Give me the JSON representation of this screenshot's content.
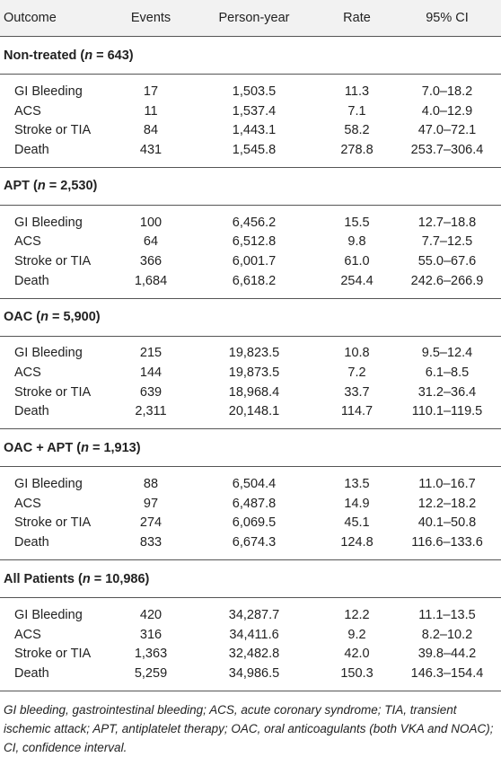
{
  "table": {
    "headers": [
      "Outcome",
      "Events",
      "Person-year",
      "Rate",
      "95% CI"
    ],
    "groups": [
      {
        "name": "Non-treated",
        "n_label": "n",
        "n_value": " = 643)",
        "rows": [
          [
            "GI Bleeding",
            "17",
            "1,503.5",
            "11.3",
            "7.0–18.2"
          ],
          [
            "ACS",
            "11",
            "1,537.4",
            "7.1",
            "4.0–12.9"
          ],
          [
            "Stroke or TIA",
            "84",
            "1,443.1",
            "58.2",
            "47.0–72.1"
          ],
          [
            "Death",
            "431",
            "1,545.8",
            "278.8",
            "253.7–306.4"
          ]
        ]
      },
      {
        "name": "APT",
        "n_label": "n",
        "n_value": " = 2,530)",
        "rows": [
          [
            "GI Bleeding",
            "100",
            "6,456.2",
            "15.5",
            "12.7–18.8"
          ],
          [
            "ACS",
            "64",
            "6,512.8",
            "9.8",
            "7.7–12.5"
          ],
          [
            "Stroke or TIA",
            "366",
            "6,001.7",
            "61.0",
            "55.0–67.6"
          ],
          [
            "Death",
            "1,684",
            "6,618.2",
            "254.4",
            "242.6–266.9"
          ]
        ]
      },
      {
        "name": "OAC",
        "n_label": "n",
        "n_value": " = 5,900)",
        "rows": [
          [
            "GI Bleeding",
            "215",
            "19,823.5",
            "10.8",
            "9.5–12.4"
          ],
          [
            "ACS",
            "144",
            "19,873.5",
            "7.2",
            "6.1–8.5"
          ],
          [
            "Stroke or TIA",
            "639",
            "18,968.4",
            "33.7",
            "31.2–36.4"
          ],
          [
            "Death",
            "2,311",
            "20,148.1",
            "114.7",
            "110.1–119.5"
          ]
        ]
      },
      {
        "name": "OAC + APT",
        "n_label": "n",
        "n_value": " = 1,913)",
        "rows": [
          [
            "GI Bleeding",
            "88",
            "6,504.4",
            "13.5",
            "11.0–16.7"
          ],
          [
            "ACS",
            "97",
            "6,487.8",
            "14.9",
            "12.2–18.2"
          ],
          [
            "Stroke or TIA",
            "274",
            "6,069.5",
            "45.1",
            "40.1–50.8"
          ],
          [
            "Death",
            "833",
            "6,674.3",
            "124.8",
            "116.6–133.6"
          ]
        ]
      },
      {
        "name": "All Patients",
        "n_label": "n",
        "n_value": " = 10,986)",
        "rows": [
          [
            "GI Bleeding",
            "420",
            "34,287.7",
            "12.2",
            "11.1–13.5"
          ],
          [
            "ACS",
            "316",
            "34,411.6",
            "9.2",
            "8.2–10.2"
          ],
          [
            "Stroke or TIA",
            "1,363",
            "32,482.8",
            "42.0",
            "39.8–44.2"
          ],
          [
            "Death",
            "5,259",
            "34,986.5",
            "150.3",
            "146.3–154.4"
          ]
        ]
      }
    ]
  },
  "footnote": "GI bleeding, gastrointestinal bleeding; ACS, acute coronary syndrome; TIA, transient ischemic attack; APT, antiplatelet therapy; OAC, oral anticoagulants (both VKA and NOAC); CI, confidence interval."
}
